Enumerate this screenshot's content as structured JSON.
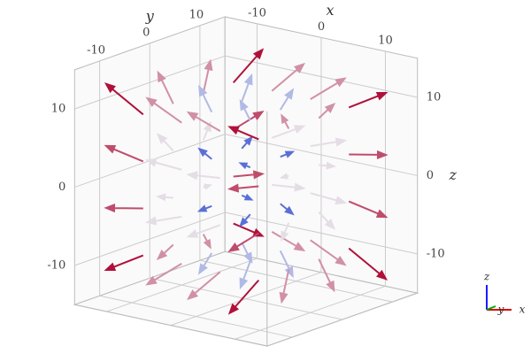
{
  "chart_data": {
    "type": "cone3d",
    "xlabel": "x",
    "ylabel": "y",
    "zlabel": "z",
    "xlim": [
      -15,
      15
    ],
    "ylim": [
      -15,
      15
    ],
    "zlim": [
      -15,
      15
    ],
    "xticks": [
      -10,
      0,
      10
    ],
    "yticks": [
      -10,
      0,
      10
    ],
    "zticks": [
      -10,
      0,
      10
    ],
    "grid": true,
    "colorscale": [
      "#5a6fd6",
      "#e8e8ee",
      "#b0103a"
    ],
    "x": [
      -9,
      -9,
      -9,
      -9,
      -9,
      -9,
      -9,
      -9,
      -9,
      -9,
      -9,
      -9,
      -9,
      -9,
      -9,
      -9,
      -3,
      -3,
      -3,
      -3,
      -3,
      -3,
      -3,
      -3,
      -3,
      -3,
      -3,
      -3,
      -3,
      -3,
      -3,
      -3,
      3,
      3,
      3,
      3,
      3,
      3,
      3,
      3,
      3,
      3,
      3,
      3,
      3,
      3,
      3,
      3,
      9,
      9,
      9,
      9,
      9,
      9,
      9,
      9,
      9,
      9,
      9,
      9,
      9,
      9,
      9,
      9
    ],
    "y": [
      -9,
      -9,
      -9,
      -9,
      -3,
      -3,
      -3,
      -3,
      3,
      3,
      3,
      3,
      9,
      9,
      9,
      9,
      -9,
      -9,
      -9,
      -9,
      -3,
      -3,
      -3,
      -3,
      3,
      3,
      3,
      3,
      9,
      9,
      9,
      9,
      -9,
      -9,
      -9,
      -9,
      -3,
      -3,
      -3,
      -3,
      3,
      3,
      3,
      3,
      9,
      9,
      9,
      9,
      -9,
      -9,
      -9,
      -9,
      -3,
      -3,
      -3,
      -3,
      3,
      3,
      3,
      3,
      9,
      9,
      9,
      9
    ],
    "z": [
      -9,
      -3,
      3,
      9,
      -9,
      -3,
      3,
      9,
      -9,
      -3,
      3,
      9,
      -9,
      -3,
      3,
      9,
      -9,
      -3,
      3,
      9,
      -9,
      -3,
      3,
      9,
      -9,
      -3,
      3,
      9,
      -9,
      -3,
      3,
      9,
      -9,
      -3,
      3,
      9,
      -9,
      -3,
      3,
      9,
      -9,
      -3,
      3,
      9,
      -9,
      -3,
      3,
      9,
      -9,
      -3,
      3,
      9,
      -9,
      -3,
      3,
      9,
      -9,
      -3,
      3,
      9,
      -9,
      -3,
      3,
      9
    ],
    "u": [
      -1.8,
      -1.8,
      -1.8,
      -1.8,
      -1.2,
      -1.2,
      -1.2,
      -1.2,
      -0.6,
      -0.6,
      -0.6,
      -0.6,
      0,
      0,
      0,
      0,
      -1.2,
      -1.2,
      -1.2,
      -1.2,
      -0.6,
      -0.6,
      -0.6,
      -0.6,
      0,
      0,
      0,
      0,
      0.6,
      0.6,
      0.6,
      0.6,
      -0.6,
      -0.6,
      -0.6,
      -0.6,
      0,
      0,
      0,
      0,
      0.6,
      0.6,
      0.6,
      0.6,
      1.2,
      1.2,
      1.2,
      1.2,
      0,
      0,
      0,
      0,
      0.6,
      0.6,
      0.6,
      0.6,
      1.2,
      1.2,
      1.2,
      1.2,
      1.8,
      1.8,
      1.8,
      1.8
    ],
    "v": [
      0,
      0,
      0,
      0,
      0.6,
      0.6,
      0.6,
      0.6,
      1.2,
      1.2,
      1.2,
      1.2,
      1.8,
      1.8,
      1.8,
      1.8,
      -0.6,
      -0.6,
      -0.6,
      -0.6,
      0,
      0,
      0,
      0,
      0.6,
      0.6,
      0.6,
      0.6,
      1.2,
      1.2,
      1.2,
      1.2,
      -1.2,
      -1.2,
      -1.2,
      -1.2,
      -0.6,
      -0.6,
      -0.6,
      -0.6,
      0,
      0,
      0,
      0,
      0.6,
      0.6,
      0.6,
      0.6,
      -1.8,
      -1.8,
      -1.8,
      -1.8,
      -1.2,
      -1.2,
      -1.2,
      -1.2,
      -0.6,
      -0.6,
      -0.6,
      -0.6,
      0,
      0,
      0,
      0
    ],
    "w": [
      -0.9,
      -0.3,
      0.3,
      0.9,
      -0.9,
      -0.3,
      0.3,
      0.9,
      -0.9,
      -0.3,
      0.3,
      0.9,
      -0.9,
      -0.3,
      0.3,
      0.9,
      -0.9,
      -0.3,
      0.3,
      0.9,
      -0.9,
      -0.3,
      0.3,
      0.9,
      -0.9,
      -0.3,
      0.3,
      0.9,
      -0.9,
      -0.3,
      0.3,
      0.9,
      -0.9,
      -0.3,
      0.3,
      0.9,
      -0.9,
      -0.3,
      0.3,
      0.9,
      -0.9,
      -0.3,
      0.3,
      0.9,
      -0.9,
      -0.3,
      0.3,
      0.9,
      -0.9,
      -0.3,
      0.3,
      0.9,
      -0.9,
      -0.3,
      0.3,
      0.9,
      -0.9,
      -0.3,
      0.3,
      0.9,
      -0.9,
      -0.3,
      0.3,
      0.9
    ]
  }
}
